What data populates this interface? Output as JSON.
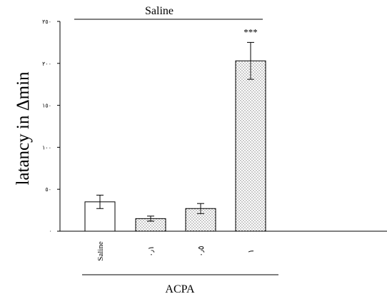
{
  "chart_data": {
    "type": "bar",
    "ylabel": "latancy in Δmin",
    "ylim": [
      0,
      250
    ],
    "y_ticks": [
      {
        "value": 0,
        "label": "·"
      },
      {
        "value": 50,
        "label": "٥٠"
      },
      {
        "value": 100,
        "label": "١٠٠"
      },
      {
        "value": 150,
        "label": "١٥٠"
      },
      {
        "value": 200,
        "label": "٢٠٠"
      },
      {
        "value": 250,
        "label": "٢٥٠"
      }
    ],
    "categories": [
      "Saline",
      "٠٫١",
      "٠٫٥",
      "١"
    ],
    "values": [
      35,
      15,
      27,
      203
    ],
    "errors": [
      8,
      3,
      6,
      22
    ],
    "patterns": [
      "none",
      "dots",
      "dots",
      "dots"
    ],
    "bar_color": "#000000",
    "significance": [
      {
        "category_index": 3,
        "label": "***"
      }
    ],
    "bracket_top": {
      "label": "Saline",
      "from_index": 0,
      "to_index": 3
    },
    "bracket_bottom": {
      "label": "ACPA",
      "from_index": 0,
      "to_index": 3
    },
    "grid": false,
    "legend": "none"
  }
}
